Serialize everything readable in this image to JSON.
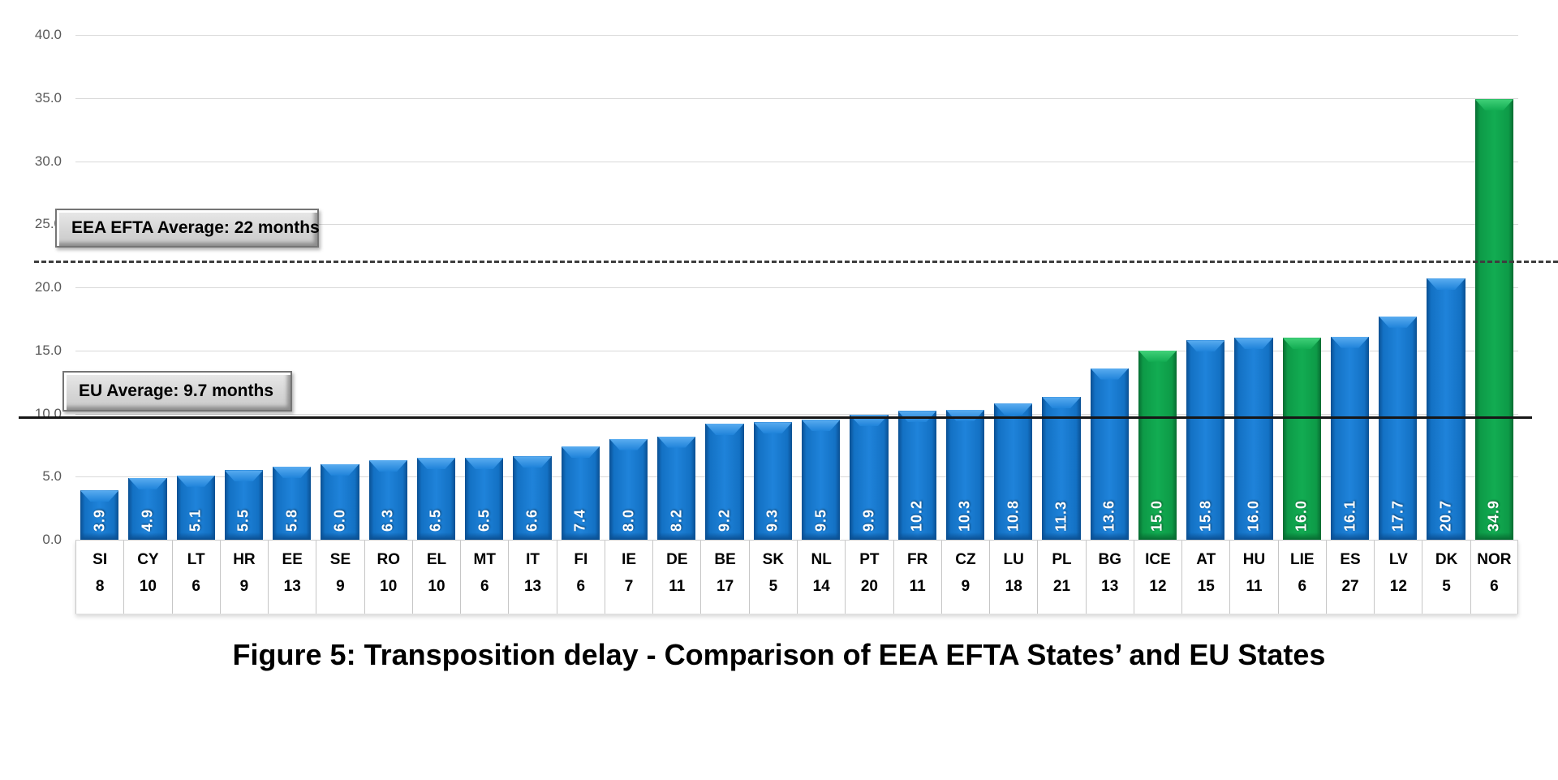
{
  "chart_data": {
    "type": "bar",
    "title": "Figure 5: Transposition delay - Comparison of EEA EFTA States’ and EU States",
    "categories": [
      "SI",
      "CY",
      "LT",
      "HR",
      "EE",
      "SE",
      "RO",
      "EL",
      "MT",
      "IT",
      "FI",
      "IE",
      "DE",
      "BE",
      "SK",
      "NL",
      "PT",
      "FR",
      "CZ",
      "LU",
      "PL",
      "BG",
      "ICE",
      "AT",
      "HU",
      "LIE",
      "ES",
      "LV",
      "DK",
      "NOR"
    ],
    "values": [
      3.9,
      4.9,
      5.1,
      5.5,
      5.8,
      6.0,
      6.3,
      6.5,
      6.5,
      6.6,
      7.4,
      8.0,
      8.2,
      9.2,
      9.3,
      9.5,
      9.9,
      10.2,
      10.3,
      10.8,
      11.3,
      13.6,
      15.0,
      15.8,
      16.0,
      16.0,
      16.1,
      17.7,
      20.7,
      34.9
    ],
    "value_labels": [
      "3.9",
      "4.9",
      "5.1",
      "5.5",
      "5.8",
      "6.0",
      "6.3",
      "6.5",
      "6.5",
      "6.6",
      "7.4",
      "8.0",
      "8.2",
      "9.2",
      "9.3",
      "9.5",
      "9.9",
      "10.2",
      "10.3",
      "10.8",
      "11.3",
      "13.6",
      "15.0",
      "15.8",
      "16.0",
      "16.0",
      "16.1",
      "17.7",
      "20.7",
      "34.9"
    ],
    "sub_labels": [
      "8",
      "10",
      "6",
      "9",
      "13",
      "9",
      "10",
      "10",
      "6",
      "13",
      "6",
      "7",
      "11",
      "17",
      "5",
      "14",
      "20",
      "11",
      "9",
      "18",
      "21",
      "13",
      "12",
      "15",
      "11",
      "6",
      "27",
      "12",
      "5",
      "6"
    ],
    "bar_types": [
      "eu",
      "eu",
      "eu",
      "eu",
      "eu",
      "eu",
      "eu",
      "eu",
      "eu",
      "eu",
      "eu",
      "eu",
      "eu",
      "eu",
      "eu",
      "eu",
      "eu",
      "eu",
      "eu",
      "eu",
      "eu",
      "eu",
      "efta",
      "eu",
      "eu",
      "efta",
      "eu",
      "eu",
      "eu",
      "efta"
    ],
    "ylim": [
      0,
      40
    ],
    "ytick_step": 5,
    "ytick_labels": [
      "0.0",
      "5.0",
      "10.0",
      "15.0",
      "20.0",
      "25.0",
      "30.0",
      "35.0",
      "40.0"
    ],
    "grid": "horizontal-only",
    "legend": "none",
    "xlabel": "",
    "ylabel": "",
    "annotations": [
      {
        "id": "eea-efta-average",
        "label": "EEA EFTA Average: 22 months",
        "value": 22,
        "line_style": "dashed"
      },
      {
        "id": "eu-average",
        "label": "EU Average: 9.7 months",
        "value": 9.7,
        "line_style": "solid"
      }
    ],
    "colors": {
      "eu_bar": "#1371c4",
      "efta_bar": "#0d9a47",
      "gridline": "#d9d9d9",
      "axis_label": "#595959",
      "dashed_line": "#3e3e3e",
      "solid_line": "#161616",
      "background": "#ffffff"
    }
  }
}
